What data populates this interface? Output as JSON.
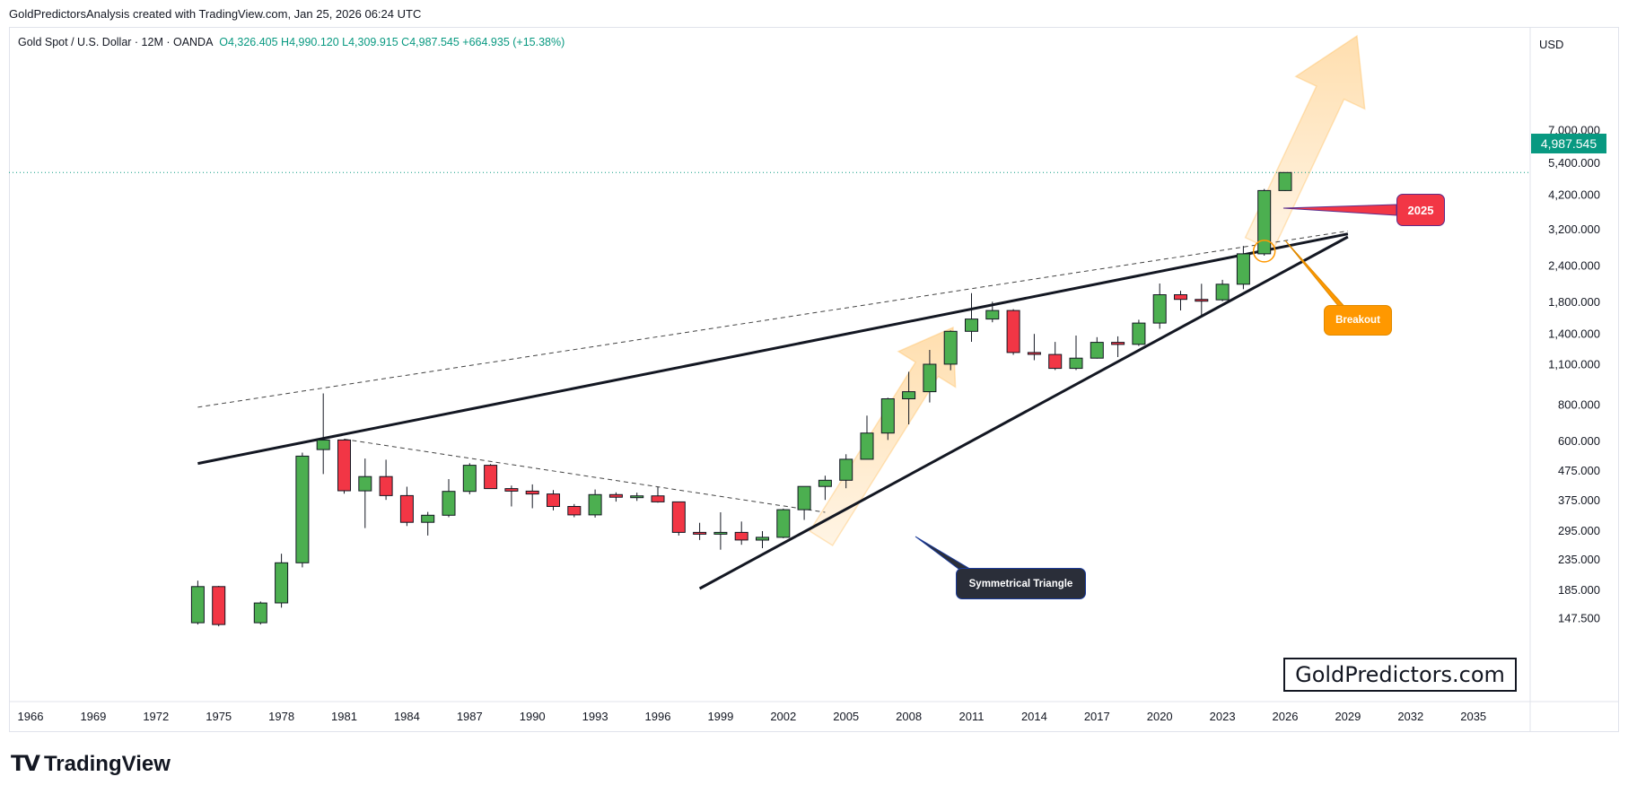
{
  "header": {
    "caption": "GoldPredictorsAnalysis created with TradingView.com, Jan 25, 2026 06:24 UTC",
    "symbol": "Gold Spot / U.S. Dollar · 12M · OANDA",
    "ohlc": "O4,326.405  H4,990.120  L4,309.915  C4,987.545  +664.935 (+15.38%)"
  },
  "price_axis": {
    "currency": "USD",
    "last_price_label": "4,987.545"
  },
  "annotations": {
    "callout_2025": "2025",
    "callout_breakout": "Breakout",
    "callout_triangle": "Symmetrical Triangle",
    "brand_box": "GoldPredictors.com"
  },
  "footer": {
    "logo_mark": "𝟭𝟳",
    "logo_text": "TradingView"
  },
  "colors": {
    "up": "#4caf50",
    "down": "#f23645",
    "last_price": "#089981",
    "arrow": "#ffb74d",
    "callout_2025": "#f23645",
    "callout_breakout": "#ff9800",
    "callout_triangle": "#2a2e39"
  },
  "chart_data": {
    "type": "candlestick",
    "scale": "log",
    "ylim": [
      142,
      10000
    ],
    "x_ticks": [
      "1966",
      "1969",
      "1972",
      "1975",
      "1978",
      "1981",
      "1984",
      "1987",
      "1990",
      "1993",
      "1996",
      "1999",
      "2002",
      "2005",
      "2008",
      "2011",
      "2014",
      "2017",
      "2020",
      "2023",
      "2026",
      "2029",
      "2032",
      "2035"
    ],
    "y_ticks": [
      {
        "value": 7000,
        "label": "7,000.000"
      },
      {
        "value": 5400,
        "label": "5,400.000"
      },
      {
        "value": 4200,
        "label": "4,200.000"
      },
      {
        "value": 3200,
        "label": "3,200.000"
      },
      {
        "value": 2400,
        "label": "2,400.000"
      },
      {
        "value": 1800,
        "label": "1,800.000"
      },
      {
        "value": 1400,
        "label": "1,400.000"
      },
      {
        "value": 1100,
        "label": "1,100.000"
      },
      {
        "value": 800,
        "label": "800.000"
      },
      {
        "value": 600,
        "label": "600.000"
      },
      {
        "value": 475,
        "label": "475.000"
      },
      {
        "value": 375,
        "label": "375.000"
      },
      {
        "value": 295,
        "label": "295.000"
      },
      {
        "value": 235,
        "label": "235.000"
      },
      {
        "value": 185,
        "label": "185.000"
      },
      {
        "value": 147.5,
        "label": "147.500"
      }
    ],
    "candles": [
      {
        "year": 1974,
        "o": 142,
        "h": 198,
        "l": 140,
        "c": 189
      },
      {
        "year": 1975,
        "o": 189,
        "h": 190,
        "l": 138,
        "c": 140
      },
      {
        "year": 1977,
        "o": 142,
        "h": 168,
        "l": 140,
        "c": 166
      },
      {
        "year": 1978,
        "o": 166,
        "h": 245,
        "l": 160,
        "c": 228
      },
      {
        "year": 1979,
        "o": 228,
        "h": 545,
        "l": 220,
        "c": 530
      },
      {
        "year": 1980,
        "o": 558,
        "h": 870,
        "l": 460,
        "c": 602
      },
      {
        "year": 1981,
        "o": 602,
        "h": 606,
        "l": 394,
        "c": 403
      },
      {
        "year": 1982,
        "o": 403,
        "h": 520,
        "l": 300,
        "c": 451
      },
      {
        "year": 1983,
        "o": 451,
        "h": 515,
        "l": 375,
        "c": 388
      },
      {
        "year": 1984,
        "o": 388,
        "h": 416,
        "l": 305,
        "c": 314
      },
      {
        "year": 1985,
        "o": 314,
        "h": 341,
        "l": 283,
        "c": 332
      },
      {
        "year": 1986,
        "o": 332,
        "h": 442,
        "l": 327,
        "c": 401
      },
      {
        "year": 1987,
        "o": 401,
        "h": 501,
        "l": 392,
        "c": 493
      },
      {
        "year": 1988,
        "o": 493,
        "h": 498,
        "l": 409,
        "c": 410
      },
      {
        "year": 1989,
        "o": 410,
        "h": 420,
        "l": 356,
        "c": 402
      },
      {
        "year": 1990,
        "o": 402,
        "h": 424,
        "l": 351,
        "c": 393
      },
      {
        "year": 1991,
        "o": 393,
        "h": 405,
        "l": 345,
        "c": 356
      },
      {
        "year": 1992,
        "o": 356,
        "h": 363,
        "l": 327,
        "c": 333
      },
      {
        "year": 1993,
        "o": 333,
        "h": 407,
        "l": 326,
        "c": 391
      },
      {
        "year": 1994,
        "o": 391,
        "h": 398,
        "l": 370,
        "c": 383
      },
      {
        "year": 1995,
        "o": 383,
        "h": 397,
        "l": 372,
        "c": 387
      },
      {
        "year": 1996,
        "o": 387,
        "h": 415,
        "l": 367,
        "c": 369
      },
      {
        "year": 1997,
        "o": 369,
        "h": 368,
        "l": 283,
        "c": 290
      },
      {
        "year": 1998,
        "o": 290,
        "h": 313,
        "l": 273,
        "c": 288
      },
      {
        "year": 1999,
        "o": 288,
        "h": 340,
        "l": 253,
        "c": 290
      },
      {
        "year": 2000,
        "o": 290,
        "h": 316,
        "l": 263,
        "c": 273
      },
      {
        "year": 2001,
        "o": 273,
        "h": 293,
        "l": 256,
        "c": 279
      },
      {
        "year": 2002,
        "o": 279,
        "h": 350,
        "l": 277,
        "c": 347
      },
      {
        "year": 2003,
        "o": 347,
        "h": 417,
        "l": 320,
        "c": 417
      },
      {
        "year": 2004,
        "o": 417,
        "h": 454,
        "l": 375,
        "c": 438
      },
      {
        "year": 2005,
        "o": 438,
        "h": 538,
        "l": 411,
        "c": 517
      },
      {
        "year": 2006,
        "o": 517,
        "h": 730,
        "l": 518,
        "c": 636
      },
      {
        "year": 2007,
        "o": 636,
        "h": 841,
        "l": 602,
        "c": 834
      },
      {
        "year": 2008,
        "o": 834,
        "h": 1032,
        "l": 681,
        "c": 882
      },
      {
        "year": 2009,
        "o": 882,
        "h": 1227,
        "l": 810,
        "c": 1096
      },
      {
        "year": 2010,
        "o": 1096,
        "h": 1431,
        "l": 1045,
        "c": 1421
      },
      {
        "year": 2011,
        "o": 1421,
        "h": 1921,
        "l": 1308,
        "c": 1566
      },
      {
        "year": 2012,
        "o": 1566,
        "h": 1796,
        "l": 1527,
        "c": 1675
      },
      {
        "year": 2013,
        "o": 1675,
        "h": 1694,
        "l": 1180,
        "c": 1202
      },
      {
        "year": 2014,
        "o": 1202,
        "h": 1392,
        "l": 1131,
        "c": 1184
      },
      {
        "year": 2015,
        "o": 1184,
        "h": 1307,
        "l": 1046,
        "c": 1061
      },
      {
        "year": 2016,
        "o": 1061,
        "h": 1375,
        "l": 1046,
        "c": 1150
      },
      {
        "year": 2017,
        "o": 1150,
        "h": 1357,
        "l": 1146,
        "c": 1303
      },
      {
        "year": 2018,
        "o": 1303,
        "h": 1366,
        "l": 1160,
        "c": 1282
      },
      {
        "year": 2019,
        "o": 1282,
        "h": 1557,
        "l": 1266,
        "c": 1517
      },
      {
        "year": 2020,
        "o": 1517,
        "h": 2075,
        "l": 1451,
        "c": 1898
      },
      {
        "year": 2021,
        "o": 1898,
        "h": 1959,
        "l": 1677,
        "c": 1829
      },
      {
        "year": 2022,
        "o": 1829,
        "h": 2070,
        "l": 1614,
        "c": 1824
      },
      {
        "year": 2023,
        "o": 1824,
        "h": 2135,
        "l": 1804,
        "c": 2063
      },
      {
        "year": 2024,
        "o": 2063,
        "h": 2790,
        "l": 1984,
        "c": 2624
      },
      {
        "year": 2025,
        "o": 2624,
        "h": 4381,
        "l": 2584,
        "c": 4326
      },
      {
        "year": 2026,
        "o": 4326,
        "h": 4990,
        "l": 4310,
        "c": 4988
      }
    ],
    "last_price": 4987.545
  }
}
